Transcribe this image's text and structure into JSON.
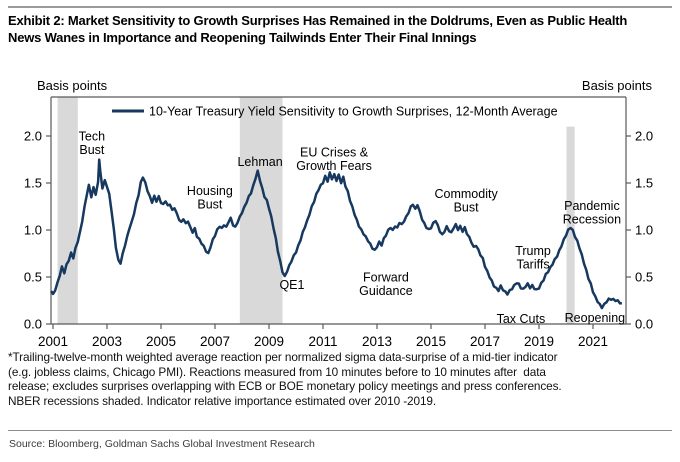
{
  "header": {
    "title": "Exhibit 2: Market Sensitivity to Growth Surprises Has Remained in the Doldrums, Even as Public Health\nNews Wanes in Importance and Reopening Tailwinds Enter Their Final Innings"
  },
  "chart_data": {
    "type": "line",
    "y_axis": {
      "header_left": "Basis points",
      "header_right": "Basis points",
      "ticks": [
        0,
        0.5,
        1.0,
        1.5,
        2.0
      ],
      "range": [
        0,
        2.42
      ]
    },
    "x_axis": {
      "ticks": [
        2001,
        2003,
        2005,
        2007,
        2009,
        2011,
        2013,
        2015,
        2017,
        2019,
        2021
      ],
      "range": [
        2000.9,
        2022.25
      ]
    },
    "colors": {
      "line": "#17395f",
      "recession_band": "#d9d9d9",
      "axis": "#595959",
      "text": "#000000"
    },
    "grid": false,
    "legend_position": "top-inside",
    "recessions": [
      {
        "from": 2001.17,
        "to": 2001.92,
        "top": 2.42
      },
      {
        "from": 2007.92,
        "to": 2009.5,
        "top": 2.42
      },
      {
        "from": 2020.02,
        "to": 2020.32,
        "top": 2.1
      }
    ],
    "annotations": [
      {
        "id": "tech-bust",
        "text": "Tech\nBust",
        "x": 2002.44,
        "y_top": 2.07
      },
      {
        "id": "housing-bust",
        "text": "Housing\nBust",
        "x": 2006.81,
        "y_top": 1.49
      },
      {
        "id": "lehman",
        "text": "Lehman",
        "x": 2008.67,
        "y_top": 1.8
      },
      {
        "id": "eu-crises",
        "text": "EU Crises &\nGrowth Fears",
        "x": 2011.41,
        "y_top": 1.9
      },
      {
        "id": "qe1",
        "text": "QE1",
        "x": 2009.85,
        "y_top": 0.49
      },
      {
        "id": "forward-guidance",
        "text": "Forward\nGuidance",
        "x": 2013.33,
        "y_top": 0.57
      },
      {
        "id": "commodity-bust",
        "text": "Commodity\nBust",
        "x": 2016.3,
        "y_top": 1.46
      },
      {
        "id": "trump-tariffs",
        "text": "Trump\nTariffs",
        "x": 2018.78,
        "y_top": 0.85
      },
      {
        "id": "tax-cuts",
        "text": "Tax Cuts",
        "x": 2018.33,
        "y_top": 0.13
      },
      {
        "id": "pandemic-recession",
        "text": "Pandemic\nRecession",
        "x": 2020.96,
        "y_top": 1.33
      },
      {
        "id": "reopening",
        "text": "Reopening",
        "x": 2021.07,
        "y_top": 0.14
      }
    ],
    "series": [
      {
        "name": "10-Year Treasury Yield Sensitivity to Growth Surprises, 12-Month Average",
        "points": [
          [
            2000.93,
            0.35
          ],
          [
            2001.0,
            0.31
          ],
          [
            2001.08,
            0.37
          ],
          [
            2001.17,
            0.44
          ],
          [
            2001.25,
            0.52
          ],
          [
            2001.33,
            0.6
          ],
          [
            2001.42,
            0.55
          ],
          [
            2001.5,
            0.63
          ],
          [
            2001.58,
            0.68
          ],
          [
            2001.67,
            0.75
          ],
          [
            2001.75,
            0.71
          ],
          [
            2001.83,
            0.8
          ],
          [
            2001.92,
            0.88
          ],
          [
            2002.0,
            0.97
          ],
          [
            2002.08,
            1.1
          ],
          [
            2002.17,
            1.25
          ],
          [
            2002.25,
            1.38
          ],
          [
            2002.33,
            1.47
          ],
          [
            2002.42,
            1.36
          ],
          [
            2002.5,
            1.45
          ],
          [
            2002.58,
            1.38
          ],
          [
            2002.67,
            1.5
          ],
          [
            2002.71,
            1.76
          ],
          [
            2002.75,
            1.62
          ],
          [
            2002.83,
            1.45
          ],
          [
            2002.92,
            1.52
          ],
          [
            2003.0,
            1.47
          ],
          [
            2003.08,
            1.38
          ],
          [
            2003.17,
            1.2
          ],
          [
            2003.25,
            1.0
          ],
          [
            2003.33,
            0.82
          ],
          [
            2003.42,
            0.68
          ],
          [
            2003.5,
            0.65
          ],
          [
            2003.58,
            0.74
          ],
          [
            2003.67,
            0.85
          ],
          [
            2003.75,
            0.93
          ],
          [
            2003.83,
            1.02
          ],
          [
            2003.92,
            1.08
          ],
          [
            2004.0,
            1.18
          ],
          [
            2004.08,
            1.28
          ],
          [
            2004.17,
            1.38
          ],
          [
            2004.25,
            1.5
          ],
          [
            2004.33,
            1.57
          ],
          [
            2004.42,
            1.5
          ],
          [
            2004.5,
            1.42
          ],
          [
            2004.58,
            1.35
          ],
          [
            2004.67,
            1.3
          ],
          [
            2004.75,
            1.36
          ],
          [
            2004.83,
            1.31
          ],
          [
            2004.92,
            1.35
          ],
          [
            2005.0,
            1.3
          ],
          [
            2005.08,
            1.27
          ],
          [
            2005.17,
            1.31
          ],
          [
            2005.25,
            1.25
          ],
          [
            2005.33,
            1.28
          ],
          [
            2005.42,
            1.21
          ],
          [
            2005.5,
            1.24
          ],
          [
            2005.58,
            1.17
          ],
          [
            2005.67,
            1.12
          ],
          [
            2005.75,
            1.08
          ],
          [
            2005.83,
            1.12
          ],
          [
            2005.92,
            1.06
          ],
          [
            2006.0,
            1.1
          ],
          [
            2006.08,
            1.03
          ],
          [
            2006.17,
            0.98
          ],
          [
            2006.25,
            1.01
          ],
          [
            2006.33,
            0.94
          ],
          [
            2006.42,
            0.9
          ],
          [
            2006.5,
            0.86
          ],
          [
            2006.58,
            0.82
          ],
          [
            2006.67,
            0.78
          ],
          [
            2006.75,
            0.75
          ],
          [
            2006.83,
            0.82
          ],
          [
            2006.92,
            0.89
          ],
          [
            2007.0,
            0.95
          ],
          [
            2007.08,
            1.0
          ],
          [
            2007.17,
            1.04
          ],
          [
            2007.25,
            1.01
          ],
          [
            2007.33,
            1.06
          ],
          [
            2007.42,
            1.03
          ],
          [
            2007.5,
            1.09
          ],
          [
            2007.58,
            1.12
          ],
          [
            2007.67,
            1.06
          ],
          [
            2007.75,
            1.03
          ],
          [
            2007.83,
            1.08
          ],
          [
            2007.92,
            1.13
          ],
          [
            2008.0,
            1.19
          ],
          [
            2008.08,
            1.24
          ],
          [
            2008.17,
            1.3
          ],
          [
            2008.25,
            1.35
          ],
          [
            2008.33,
            1.4
          ],
          [
            2008.42,
            1.47
          ],
          [
            2008.5,
            1.55
          ],
          [
            2008.58,
            1.62
          ],
          [
            2008.67,
            1.53
          ],
          [
            2008.75,
            1.44
          ],
          [
            2008.83,
            1.36
          ],
          [
            2008.92,
            1.31
          ],
          [
            2009.0,
            1.24
          ],
          [
            2009.08,
            1.14
          ],
          [
            2009.17,
            1.02
          ],
          [
            2009.25,
            0.9
          ],
          [
            2009.33,
            0.78
          ],
          [
            2009.42,
            0.66
          ],
          [
            2009.5,
            0.56
          ],
          [
            2009.58,
            0.5
          ],
          [
            2009.67,
            0.57
          ],
          [
            2009.75,
            0.62
          ],
          [
            2009.83,
            0.67
          ],
          [
            2009.92,
            0.72
          ],
          [
            2010.0,
            0.77
          ],
          [
            2010.08,
            0.83
          ],
          [
            2010.17,
            0.9
          ],
          [
            2010.25,
            0.97
          ],
          [
            2010.33,
            1.04
          ],
          [
            2010.42,
            1.1
          ],
          [
            2010.5,
            1.17
          ],
          [
            2010.58,
            1.24
          ],
          [
            2010.67,
            1.31
          ],
          [
            2010.75,
            1.38
          ],
          [
            2010.83,
            1.43
          ],
          [
            2010.92,
            1.47
          ],
          [
            2011.0,
            1.51
          ],
          [
            2011.08,
            1.57
          ],
          [
            2011.17,
            1.52
          ],
          [
            2011.25,
            1.6
          ],
          [
            2011.33,
            1.55
          ],
          [
            2011.42,
            1.59
          ],
          [
            2011.5,
            1.53
          ],
          [
            2011.58,
            1.58
          ],
          [
            2011.67,
            1.51
          ],
          [
            2011.75,
            1.56
          ],
          [
            2011.83,
            1.47
          ],
          [
            2011.92,
            1.4
          ],
          [
            2012.0,
            1.32
          ],
          [
            2012.08,
            1.25
          ],
          [
            2012.17,
            1.17
          ],
          [
            2012.25,
            1.1
          ],
          [
            2012.33,
            1.05
          ],
          [
            2012.42,
            1.0
          ],
          [
            2012.5,
            0.96
          ],
          [
            2012.58,
            0.92
          ],
          [
            2012.67,
            0.89
          ],
          [
            2012.75,
            0.85
          ],
          [
            2012.83,
            0.81
          ],
          [
            2012.92,
            0.78
          ],
          [
            2013.0,
            0.83
          ],
          [
            2013.08,
            0.87
          ],
          [
            2013.17,
            0.84
          ],
          [
            2013.25,
            0.9
          ],
          [
            2013.33,
            0.95
          ],
          [
            2013.42,
            1.0
          ],
          [
            2013.5,
            1.03
          ],
          [
            2013.58,
            0.99
          ],
          [
            2013.67,
            1.05
          ],
          [
            2013.75,
            1.02
          ],
          [
            2013.83,
            1.08
          ],
          [
            2013.92,
            1.05
          ],
          [
            2014.0,
            1.1
          ],
          [
            2014.08,
            1.14
          ],
          [
            2014.17,
            1.19
          ],
          [
            2014.25,
            1.24
          ],
          [
            2014.33,
            1.28
          ],
          [
            2014.42,
            1.22
          ],
          [
            2014.5,
            1.27
          ],
          [
            2014.58,
            1.19
          ],
          [
            2014.67,
            1.12
          ],
          [
            2014.75,
            1.07
          ],
          [
            2014.83,
            1.03
          ],
          [
            2014.92,
            1.0
          ],
          [
            2015.0,
            1.03
          ],
          [
            2015.08,
            1.07
          ],
          [
            2015.17,
            1.1
          ],
          [
            2015.25,
            1.04
          ],
          [
            2015.33,
            0.99
          ],
          [
            2015.42,
            0.95
          ],
          [
            2015.5,
            0.99
          ],
          [
            2015.58,
            1.03
          ],
          [
            2015.67,
            1.0
          ],
          [
            2015.75,
            0.97
          ],
          [
            2015.83,
            1.02
          ],
          [
            2015.92,
            1.05
          ],
          [
            2016.0,
            1.01
          ],
          [
            2016.08,
            1.04
          ],
          [
            2016.17,
            0.99
          ],
          [
            2016.25,
            1.02
          ],
          [
            2016.33,
            0.97
          ],
          [
            2016.42,
            0.92
          ],
          [
            2016.5,
            0.87
          ],
          [
            2016.58,
            0.81
          ],
          [
            2016.67,
            0.84
          ],
          [
            2016.75,
            0.79
          ],
          [
            2016.83,
            0.74
          ],
          [
            2016.92,
            0.69
          ],
          [
            2017.0,
            0.62
          ],
          [
            2017.08,
            0.56
          ],
          [
            2017.17,
            0.5
          ],
          [
            2017.25,
            0.45
          ],
          [
            2017.33,
            0.41
          ],
          [
            2017.42,
            0.38
          ],
          [
            2017.5,
            0.36
          ],
          [
            2017.58,
            0.4
          ],
          [
            2017.67,
            0.37
          ],
          [
            2017.75,
            0.34
          ],
          [
            2017.83,
            0.32
          ],
          [
            2017.92,
            0.35
          ],
          [
            2018.0,
            0.38
          ],
          [
            2018.08,
            0.41
          ],
          [
            2018.17,
            0.44
          ],
          [
            2018.25,
            0.42
          ],
          [
            2018.33,
            0.39
          ],
          [
            2018.42,
            0.37
          ],
          [
            2018.5,
            0.4
          ],
          [
            2018.58,
            0.42
          ],
          [
            2018.67,
            0.39
          ],
          [
            2018.75,
            0.41
          ],
          [
            2018.83,
            0.38
          ],
          [
            2018.92,
            0.36
          ],
          [
            2019.0,
            0.39
          ],
          [
            2019.08,
            0.43
          ],
          [
            2019.17,
            0.47
          ],
          [
            2019.25,
            0.52
          ],
          [
            2019.33,
            0.56
          ],
          [
            2019.42,
            0.6
          ],
          [
            2019.5,
            0.64
          ],
          [
            2019.58,
            0.68
          ],
          [
            2019.67,
            0.73
          ],
          [
            2019.75,
            0.78
          ],
          [
            2019.83,
            0.83
          ],
          [
            2019.92,
            0.89
          ],
          [
            2020.0,
            0.95
          ],
          [
            2020.08,
            1.0
          ],
          [
            2020.17,
            1.03
          ],
          [
            2020.25,
            0.99
          ],
          [
            2020.33,
            0.94
          ],
          [
            2020.42,
            0.88
          ],
          [
            2020.5,
            0.81
          ],
          [
            2020.58,
            0.73
          ],
          [
            2020.67,
            0.65
          ],
          [
            2020.75,
            0.57
          ],
          [
            2020.83,
            0.49
          ],
          [
            2020.92,
            0.42
          ],
          [
            2021.0,
            0.35
          ],
          [
            2021.08,
            0.29
          ],
          [
            2021.17,
            0.24
          ],
          [
            2021.25,
            0.2
          ],
          [
            2021.33,
            0.18
          ],
          [
            2021.42,
            0.21
          ],
          [
            2021.5,
            0.24
          ],
          [
            2021.58,
            0.26
          ],
          [
            2021.67,
            0.27
          ],
          [
            2021.75,
            0.26
          ],
          [
            2021.83,
            0.25
          ],
          [
            2021.92,
            0.24
          ],
          [
            2022.0,
            0.23
          ],
          [
            2022.07,
            0.22
          ]
        ]
      }
    ]
  },
  "footnote": "*Trailing-twelve-month weighted average reaction per normalized sigma data-surprise of a mid-tier indicator\n(e.g. jobless claims, Chicago PMI). Reactions measured from 10 minutes before to 10 minutes after  data\nrelease; excludes surprises overlapping with ECB or BOE monetary policy meetings and press conferences.\nNBER recessions shaded. Indicator relative importance estimated over 2010 -2019.",
  "source": "Source: Bloomberg, Goldman Sachs Global Investment Research"
}
